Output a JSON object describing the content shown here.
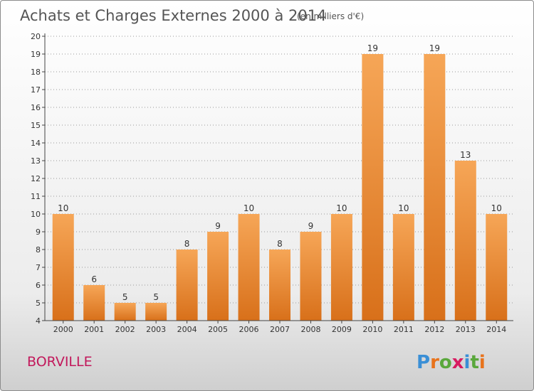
{
  "header": {
    "title": "Achats et Charges Externes 2000 à 2014",
    "subtitle": "(en milliers d'€)"
  },
  "footer": {
    "place": "BORVILLE",
    "brand": [
      "P",
      "r",
      "o",
      "x",
      "i",
      "t",
      "i"
    ],
    "brand_colors": [
      "#3a8fd6",
      "#e8731c",
      "#5aa83c",
      "#d81b60",
      "#3a8fd6",
      "#5aa83c",
      "#e8731c"
    ]
  },
  "colors": {
    "bar_light": "#f6a657",
    "bar_dark": "#d8701a",
    "axis": "#444444",
    "grid": "#999999"
  },
  "chart_data": {
    "type": "bar",
    "title": "Achats et Charges Externes 2000 à 2014",
    "subtitle": "(en milliers d'€)",
    "categories": [
      "2000",
      "2001",
      "2002",
      "2003",
      "2004",
      "2005",
      "2006",
      "2007",
      "2008",
      "2009",
      "2010",
      "2011",
      "2012",
      "2013",
      "2014"
    ],
    "values": [
      10,
      6,
      5,
      5,
      8,
      9,
      10,
      8,
      9,
      10,
      19,
      10,
      19,
      13,
      10
    ],
    "ylim": [
      4,
      20
    ],
    "yticks": [
      4,
      5,
      6,
      7,
      8,
      9,
      10,
      11,
      12,
      13,
      14,
      15,
      16,
      17,
      18,
      19,
      20
    ],
    "grid": true,
    "xlabel": "",
    "ylabel": ""
  }
}
